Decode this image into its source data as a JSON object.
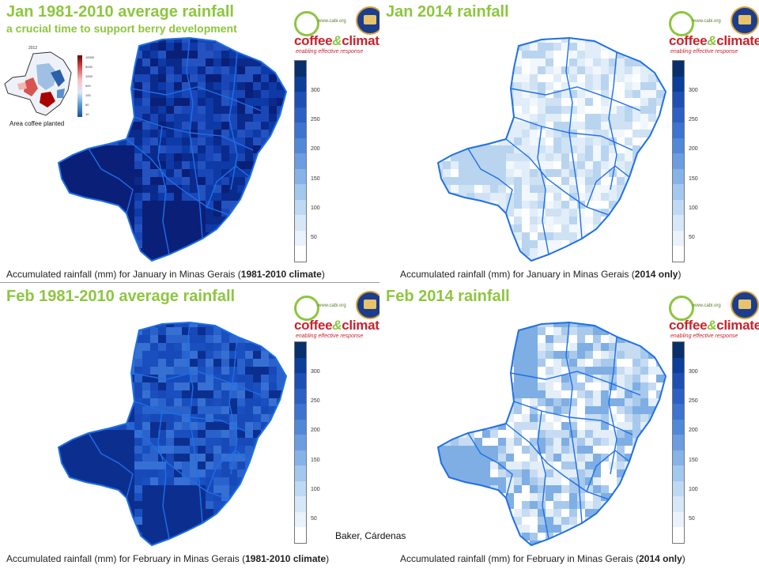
{
  "panels": [
    {
      "title": "Jan 1981-2010 average rainfall",
      "subtitle": "a crucial time to support berry development",
      "caption_plain": "Accumulated rainfall (mm) for January in Minas Gerais (",
      "caption_bold": "1981-2010 climate",
      "caption_end": ")",
      "intensity": "very-high"
    },
    {
      "title": "Jan 2014 rainfall",
      "caption_plain": "Accumulated rainfall (mm) for January in Minas Gerais (",
      "caption_bold": "2014 only",
      "caption_end": ")",
      "intensity": "very-low"
    },
    {
      "title": "Feb 1981-2010 average rainfall",
      "caption_plain": "Accumulated rainfall (mm) for February in Minas Gerais (",
      "caption_bold": "1981-2010 climate",
      "caption_end": ")",
      "intensity": "high"
    },
    {
      "title": "Feb 2014 rainfall",
      "caption_plain": "Accumulated rainfall (mm) for February in Minas Gerais (",
      "caption_bold": "2014 only",
      "caption_end": ")",
      "intensity": "low"
    }
  ],
  "legend": {
    "ticks": [
      "300",
      "250",
      "200",
      "150",
      "100",
      "50"
    ],
    "colors": [
      "#08306b",
      "#0b3f9a",
      "#1f4fb4",
      "#2d5fc4",
      "#3e73cf",
      "#5288d8",
      "#6b9de0",
      "#86b3e7",
      "#a3c8ee",
      "#bed9f3",
      "#d6e7f7",
      "#eaf2fb",
      "#ffffff"
    ]
  },
  "logo": {
    "web": "www.cabi.org",
    "coffee": "coffee",
    "amp": "&",
    "climate": "climate",
    "tagline": "enabling effective response",
    "seal_icon": "institution-seal-icon",
    "cabi_icon": "cabi-logo-icon"
  },
  "inset": {
    "year": "2012",
    "label": "Area coffee planted",
    "ticks": [
      "10000",
      "5000",
      "1000",
      "500",
      "100",
      "50",
      "10"
    ]
  },
  "credit": "Baker, Cárdenas",
  "colors": {
    "title_green": "#8dc63f",
    "border_blue": "#1e6fe8",
    "logo_red": "#c8232c"
  }
}
